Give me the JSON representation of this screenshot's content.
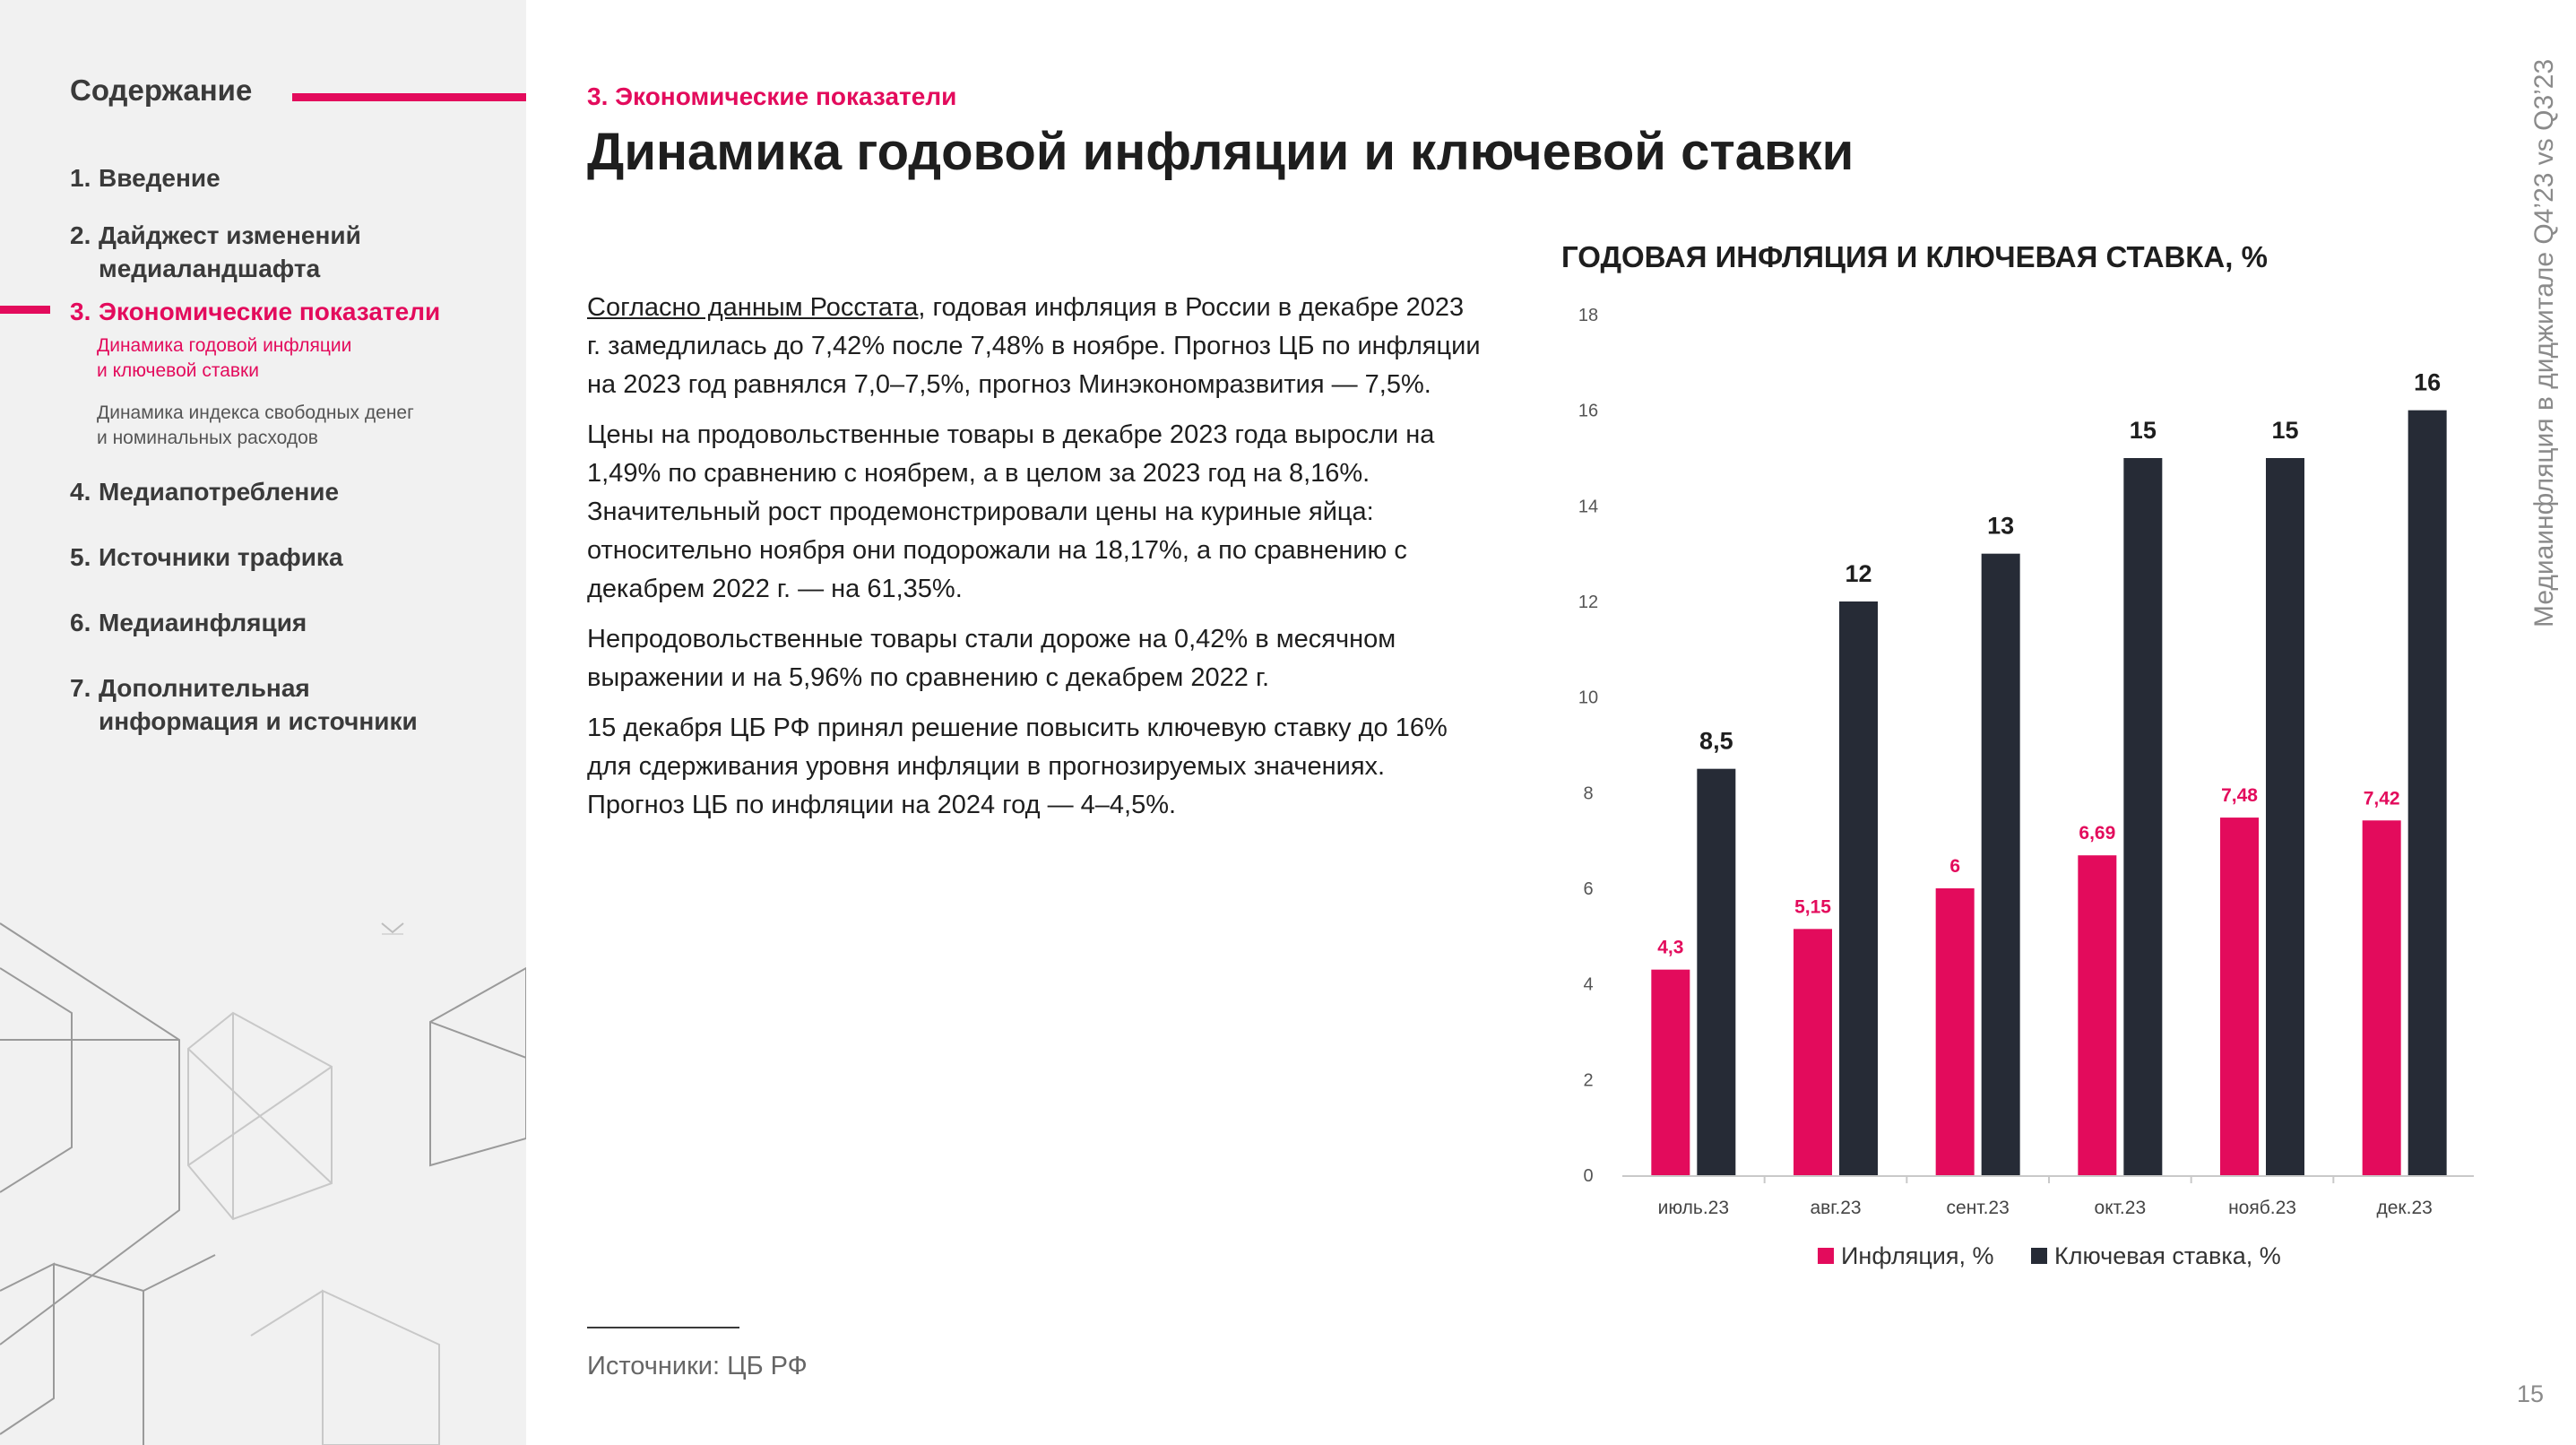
{
  "sidebar": {
    "title": "Содержание",
    "items": [
      {
        "num": "1.",
        "label": "Введение"
      },
      {
        "num": "2.",
        "label": "Дайджест изменений",
        "label2": "медиаландшафта"
      },
      {
        "num": "3.",
        "label": "Экономические показатели"
      },
      {
        "num": "4.",
        "label": "Медиапотребление"
      },
      {
        "num": "5.",
        "label": "Источники трафика"
      },
      {
        "num": "6.",
        "label": "Медиаинфляция"
      },
      {
        "num": "7.",
        "label": "Дополнительная",
        "label2": "информация и источники"
      }
    ],
    "subitems": [
      {
        "line1": "Динамика годовой инфляции",
        "line2": "и ключевой ставки"
      },
      {
        "line1": "Динамика индекса свободных денег",
        "line2": "и номинальных расходов"
      }
    ]
  },
  "header": {
    "section": "3. Экономические показатели",
    "title": "Динамика годовой инфляции и ключевой ставки"
  },
  "body": {
    "p1_link": "Согласно данным Росстата",
    "p1_rest": ", годовая инфляция в России в декабре 2023 г. замедлилась до 7,42% после 7,48% в ноябре. Прогноз ЦБ по инфляции на 2023 год равнялся 7,0–7,5%, прогноз Минэкономразвития — 7,5%.",
    "p2": "Цены на продовольственные товары в декабре 2023 года выросли на 1,49% по сравнению с ноябрем, а в целом за 2023 год на 8,16%. Значительный рост продемонстрировали цены на куриные яйца: относительно ноября они подорожали на 18,17%, а по сравнению с декабрем 2022 г. — на 61,35%.",
    "p3": "Непродовольственные товары стали дороже на 0,42% в месячном выражении и на 5,96% по сравнению с декабрем 2022 г.",
    "p4": "15 декабря ЦБ РФ принял решение повысить ключевую ставку до 16% для сдерживания уровня инфляции в прогнозируемых значениях. Прогноз ЦБ по инфляции на 2024 год — 4–4,5%."
  },
  "footer": {
    "sources": "Источники: ЦБ РФ",
    "page": "15"
  },
  "side_caption": "Медиаинфляция в диджитале Q4’23 vs Q3’23",
  "colors": {
    "accent": "#e30b5c",
    "dark": "#262b36",
    "sidebar_bg": "#f1f1f1"
  },
  "chart_data": {
    "type": "bar",
    "title": "ГОДОВАЯ ИНФЛЯЦИЯ И КЛЮЧЕВАЯ СТАВКА, %",
    "categories": [
      "июль.23",
      "авг.23",
      "сент.23",
      "окт.23",
      "нояб.23",
      "дек.23"
    ],
    "series": [
      {
        "name": "Инфляция, %",
        "color": "#e30b5c",
        "values": [
          4.3,
          5.15,
          6,
          6.69,
          7.48,
          7.42
        ],
        "labels": [
          "4,3",
          "5,15",
          "6",
          "6,69",
          "7,48",
          "7,42"
        ]
      },
      {
        "name": "Ключевая ставка, %",
        "color": "#262b36",
        "values": [
          8.5,
          12,
          13,
          15,
          15,
          16
        ],
        "labels": [
          "8,5",
          "12",
          "13",
          "15",
          "15",
          "16"
        ]
      }
    ],
    "yticks": [
      "0",
      "2",
      "4",
      "6",
      "8",
      "10",
      "12",
      "14",
      "16",
      "18"
    ],
    "ylim": [
      0,
      18
    ],
    "grid": false,
    "legend": "bottom"
  }
}
